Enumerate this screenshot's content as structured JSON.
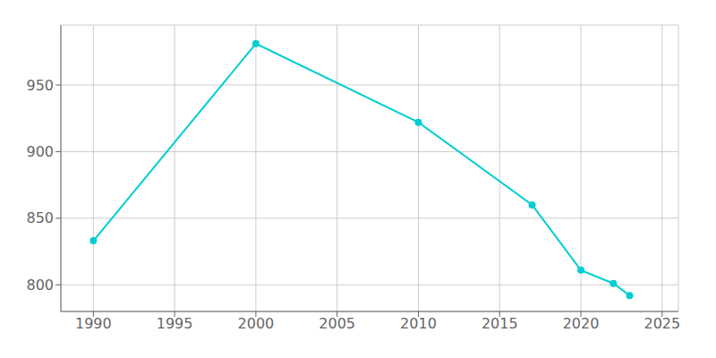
{
  "chart_data": {
    "type": "line",
    "x": [
      1990,
      2000,
      2010,
      2017,
      2020,
      2022,
      2023
    ],
    "values": [
      833,
      981,
      922,
      860,
      811,
      801,
      792
    ],
    "color": "#00CED1",
    "marker": "circle",
    "xlim": [
      1988,
      2026
    ],
    "xticks": [
      1990,
      1995,
      2000,
      2005,
      2010,
      2015,
      2020,
      2025
    ],
    "ylim": [
      780,
      995
    ],
    "yticks": [
      800,
      850,
      900,
      950
    ],
    "grid": true
  }
}
